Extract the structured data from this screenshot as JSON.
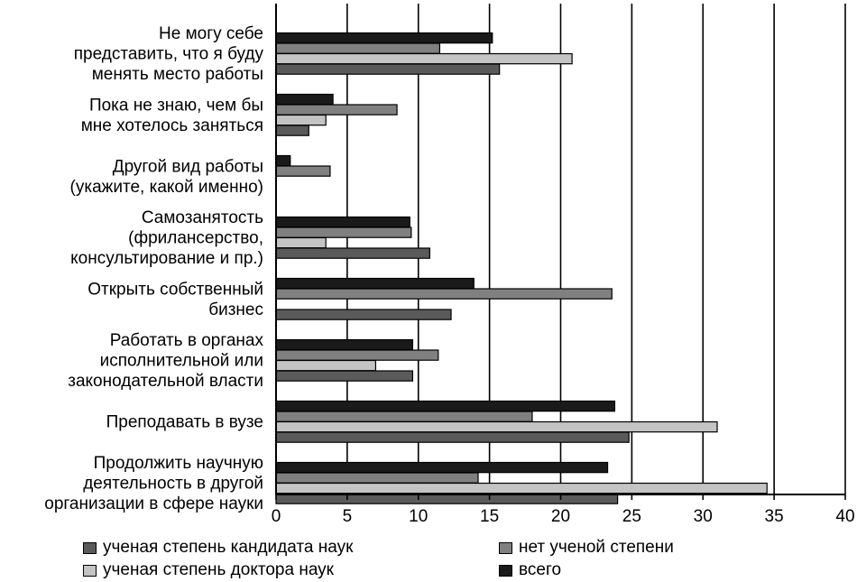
{
  "chart_data": {
    "type": "bar",
    "orientation": "horizontal",
    "title": "",
    "xlabel": "",
    "ylabel": "",
    "xlim": [
      0,
      40
    ],
    "x_ticks": [
      "0",
      "5",
      "10",
      "15",
      "20",
      "25",
      "30",
      "35",
      "40"
    ],
    "grid": "vertical lines at major ticks",
    "legend_position": "bottom",
    "categories": [
      "Не могу себе представить, что я буду менять место работы",
      "Пока не знаю, чем бы мне хотелось заняться",
      "Другой вид работы (укажите, какой именно)",
      "Самозанятость (фрилансерство, консультирование и пр.)",
      "Открыть собственный бизнес",
      "Работать в органах исполнительной или законодательной власти",
      "Преподавать в вузе",
      "Продолжить научную деятельность в другой организации в сфере науки"
    ],
    "category_lines": [
      [
        "Не могу себе",
        "представить, что я буду",
        "менять место работы"
      ],
      [
        "Пока не знаю, чем бы",
        "мне хотелось заняться"
      ],
      [
        "Другой вид работы",
        "(укажите, какой именно)"
      ],
      [
        "Самозанятость",
        "(фрилансерство,",
        "консультирование и пр.)"
      ],
      [
        "Открыть собственный",
        "бизнес"
      ],
      [
        "Работать в органах",
        "исполнительной или",
        "законодательной власти"
      ],
      [
        "Преподавать в вузе"
      ],
      [
        "Продолжить научную",
        "деятельность в другой",
        "организации в сфере науки"
      ]
    ],
    "series": [
      {
        "name": "всего",
        "color": "#1a1a1a",
        "values": [
          15.2,
          4.0,
          1.0,
          9.4,
          13.9,
          9.6,
          23.8,
          23.3
        ]
      },
      {
        "name": "нет ученой степени",
        "color": "#808080",
        "values": [
          11.5,
          8.5,
          3.8,
          9.5,
          23.6,
          11.4,
          18.0,
          14.2
        ]
      },
      {
        "name": "ученая степень доктора наук",
        "color": "#c4c4c4",
        "values": [
          20.8,
          3.5,
          0,
          3.5,
          0,
          7.0,
          31.0,
          34.5
        ]
      },
      {
        "name": "ученая степень кандидата наук",
        "color": "#5a5a5a",
        "values": [
          15.7,
          2.3,
          0,
          10.8,
          12.3,
          9.6,
          24.8,
          24.0
        ]
      }
    ],
    "legend_order": [
      3,
      1,
      2,
      0
    ]
  }
}
